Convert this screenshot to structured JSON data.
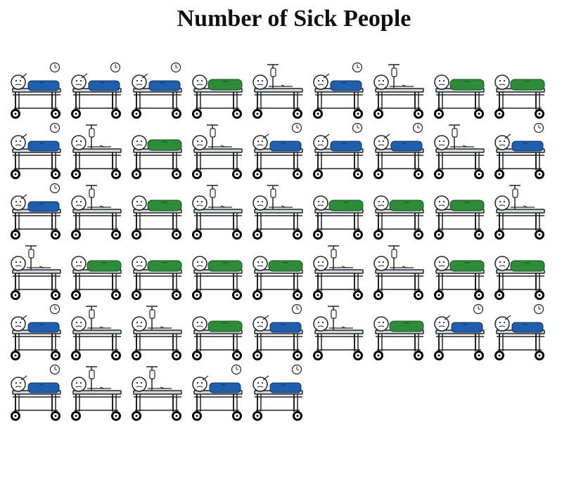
{
  "title": "Number of Sick People",
  "chart_data": {
    "type": "pictograph",
    "title": "Number of Sick People",
    "total_icons": 50,
    "icons_per_row": 9,
    "colors": {
      "blue": "#1f5fae",
      "green": "#2e8b3a",
      "frame": "#222222",
      "bed": "#cfd6de"
    },
    "icons": [
      "blue-clock",
      "blue-clock",
      "blue-clock",
      "green-plain",
      "drip-empty",
      "blue-clock",
      "drip-empty",
      "green-plain",
      "green-plain",
      "blue-clock",
      "drip-empty",
      "green-plain",
      "drip-empty",
      "blue-clock",
      "blue-clock",
      "blue-clock",
      "drip-empty",
      "blue-clock",
      "blue-clock",
      "drip-empty",
      "green-plain",
      "drip-empty",
      "drip-empty",
      "green-plain",
      "green-plain",
      "green-plain",
      "drip-empty",
      "drip-empty",
      "green-plain",
      "green-plain",
      "green-plain",
      "green-plain",
      "drip-empty",
      "drip-empty",
      "green-plain",
      "green-plain",
      "blue-clock",
      "drip-empty",
      "drip-empty",
      "green-plain",
      "blue-clock",
      "drip-empty",
      "green-plain",
      "blue-clock",
      "blue-clock",
      "blue-clock",
      "drip-empty",
      "drip-empty",
      "blue-clock",
      "blue-clock"
    ]
  }
}
